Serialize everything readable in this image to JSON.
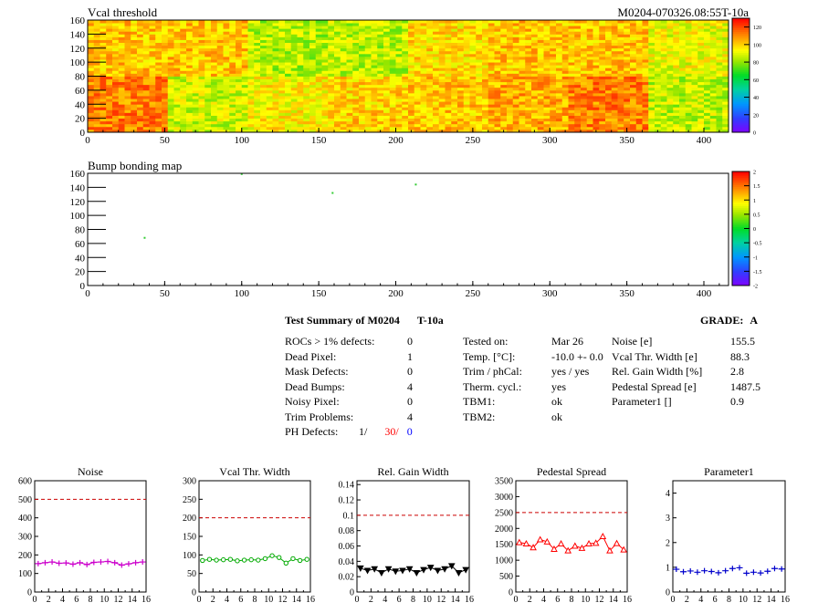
{
  "header": {
    "title": "Vcal threshold",
    "module_id": "M0204-070326.08:55T-10a"
  },
  "bump_title": "Bump bonding map",
  "colors": {
    "red": "#ff0000",
    "orange": "#ff6600",
    "yellow": "#ffff00",
    "green": "#00cc00",
    "blue": "#0000ff",
    "magenta": "#cc00cc",
    "purple": "#8000ff"
  },
  "chart_data": [
    {
      "type": "heatmap",
      "title": "Vcal threshold",
      "x_ticks": [
        "0",
        "50",
        "100",
        "150",
        "200",
        "250",
        "300",
        "350",
        "400"
      ],
      "y_ticks": [
        "0",
        "20",
        "40",
        "60",
        "80",
        "100",
        "120",
        "140",
        "160"
      ],
      "xlim": [
        0,
        416
      ],
      "ylim": [
        0,
        160
      ],
      "z_ticks": [
        "0",
        "20",
        "40",
        "60",
        "80",
        "100",
        "120"
      ],
      "zlim": [
        0,
        130
      ],
      "roc_levels_top": [
        102,
        102,
        84,
        85,
        98,
        102,
        102,
        92
      ],
      "roc_levels_bottom": [
        86,
        112,
        106,
        102,
        100,
        95,
        88,
        112
      ]
    },
    {
      "type": "heatmap",
      "title": "Bump bonding map",
      "x_ticks": [
        "0",
        "50",
        "100",
        "150",
        "200",
        "250",
        "300",
        "350",
        "400"
      ],
      "y_ticks": [
        "0",
        "20",
        "40",
        "60",
        "80",
        "100",
        "120",
        "140",
        "160"
      ],
      "xlim": [
        0,
        416
      ],
      "ylim": [
        0,
        160
      ],
      "z_ticks": [
        "2",
        "1.5",
        "1",
        "0.5",
        "0",
        "-0.5",
        "-1",
        "-1.5",
        "-2"
      ],
      "zlim": [
        -2,
        2
      ],
      "points": [
        {
          "x": 37,
          "y": 68
        },
        {
          "x": 100,
          "y": 159
        },
        {
          "x": 159,
          "y": 132
        },
        {
          "x": 213,
          "y": 144
        }
      ]
    },
    {
      "type": "line",
      "title": "Noise",
      "x_ticks": [
        "0",
        "2",
        "4",
        "6",
        "8",
        "10",
        "12",
        "14",
        "16"
      ],
      "y_ticks": [
        "0",
        "100",
        "200",
        "300",
        "400",
        "500",
        "600"
      ],
      "xlim": [
        0,
        16
      ],
      "ylim": [
        0,
        600
      ],
      "limit": 500,
      "marker": "plus",
      "color": "#cc00cc",
      "values": [
        153,
        158,
        162,
        155,
        157,
        150,
        158,
        148,
        160,
        162,
        165,
        158,
        145,
        152,
        158,
        162
      ]
    },
    {
      "type": "line",
      "title": "Vcal Thr. Width",
      "x_ticks": [
        "0",
        "2",
        "4",
        "6",
        "8",
        "10",
        "12",
        "14",
        "16"
      ],
      "y_ticks": [
        "0",
        "50",
        "100",
        "150",
        "200",
        "250",
        "300"
      ],
      "xlim": [
        0,
        16
      ],
      "ylim": [
        0,
        300
      ],
      "limit": 200,
      "marker": "circle",
      "color": "#00aa00",
      "values": [
        85,
        88,
        86,
        87,
        88,
        84,
        86,
        87,
        86,
        90,
        98,
        93,
        78,
        90,
        85,
        88
      ]
    },
    {
      "type": "line",
      "title": "Rel. Gain Width",
      "x_ticks": [
        "0",
        "2",
        "4",
        "6",
        "8",
        "10",
        "12",
        "14",
        "16"
      ],
      "y_ticks": [
        "0",
        "0.02",
        "0.04",
        "0.06",
        "0.08",
        "0.1",
        "0.12",
        "0.14"
      ],
      "xlim": [
        0,
        16
      ],
      "ylim": [
        0,
        0.145
      ],
      "limit": 0.1,
      "marker": "triangle-down",
      "color": "#000000",
      "values": [
        0.031,
        0.028,
        0.03,
        0.025,
        0.03,
        0.027,
        0.028,
        0.03,
        0.025,
        0.029,
        0.032,
        0.028,
        0.03,
        0.034,
        0.025,
        0.029
      ]
    },
    {
      "type": "line",
      "title": "Pedestal Spread",
      "x_ticks": [
        "0",
        "2",
        "4",
        "6",
        "8",
        "10",
        "12",
        "14",
        "16"
      ],
      "y_ticks": [
        "0",
        "500",
        "1000",
        "1500",
        "2000",
        "2500",
        "3000",
        "3500"
      ],
      "xlim": [
        0,
        16
      ],
      "ylim": [
        0,
        3500
      ],
      "limit": 2500,
      "marker": "triangle",
      "color": "#ff0000",
      "values": [
        1560,
        1520,
        1400,
        1650,
        1580,
        1350,
        1520,
        1300,
        1450,
        1380,
        1520,
        1540,
        1750,
        1300,
        1530,
        1330
      ]
    },
    {
      "type": "line",
      "title": "Parameter1",
      "x_ticks": [
        "0",
        "2",
        "4",
        "6",
        "8",
        "10",
        "12",
        "14",
        "16"
      ],
      "y_ticks": [
        "0",
        "1",
        "2",
        "3",
        "4"
      ],
      "xlim": [
        0,
        16
      ],
      "ylim": [
        0,
        4.5
      ],
      "marker": "plus",
      "color": "#0000cc",
      "values": [
        0.92,
        0.82,
        0.85,
        0.8,
        0.86,
        0.83,
        0.78,
        0.86,
        0.95,
        0.98,
        0.76,
        0.8,
        0.77,
        0.84,
        0.95,
        0.93
      ]
    }
  ],
  "summary": {
    "title": "Test Summary of M0204",
    "tag": "T-10a",
    "grade_label": "GRADE:",
    "grade": "A",
    "left_rows": [
      {
        "label": "ROCs > 1% defects:",
        "value": "0"
      },
      {
        "label": "Dead Pixel:",
        "value": "1"
      },
      {
        "label": "Mask Defects:",
        "value": "0"
      },
      {
        "label": "Dead Bumps:",
        "value": "4"
      },
      {
        "label": "Noisy Pixel:",
        "value": "0"
      },
      {
        "label": "Trim Problems:",
        "value": "4"
      }
    ],
    "ph_label": "PH Defects:",
    "ph_values": [
      "1/",
      "30/",
      "0"
    ],
    "mid_rows": [
      {
        "label": "Tested on:",
        "value": "Mar 26"
      },
      {
        "label": "Temp. [°C]:",
        "value": "-10.0 +- 0.0"
      },
      {
        "label": "Trim / phCal:",
        "value": "yes / yes"
      },
      {
        "label": "Therm. cycl.:",
        "value": "yes"
      },
      {
        "label": "TBM1:",
        "value": "ok"
      },
      {
        "label": "TBM2:",
        "value": "ok"
      }
    ],
    "right_rows": [
      {
        "label": "Noise [e]",
        "value": "155.5"
      },
      {
        "label": "Vcal Thr. Width [e]",
        "value": "88.3"
      },
      {
        "label": "Rel. Gain Width [%]",
        "value": "2.8"
      },
      {
        "label": "Pedestal Spread [e]",
        "value": "1487.5"
      },
      {
        "label": "Parameter1 []",
        "value": "0.9"
      }
    ]
  }
}
